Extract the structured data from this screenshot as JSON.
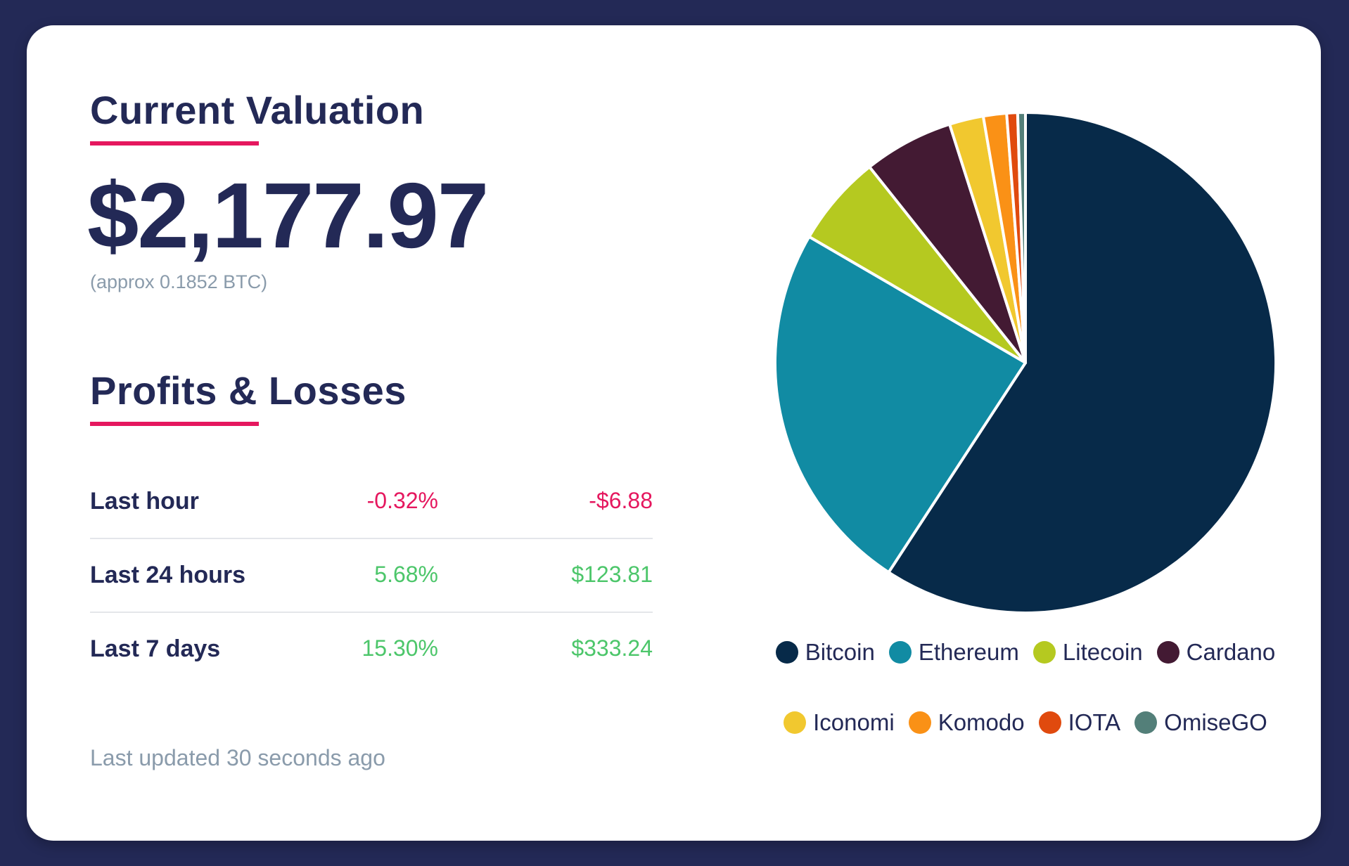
{
  "valuation": {
    "title": "Current Valuation",
    "amount": "$2,177.97",
    "approx": "(approx 0.1852 BTC)"
  },
  "profits": {
    "title": "Profits & Losses",
    "rows": [
      {
        "label": "Last hour",
        "percent": "-0.32%",
        "amount": "-$6.88",
        "trend": "neg"
      },
      {
        "label": "Last 24 hours",
        "percent": "5.68%",
        "amount": "$123.81",
        "trend": "pos"
      },
      {
        "label": "Last 7 days",
        "percent": "15.30%",
        "amount": "$333.24",
        "trend": "pos"
      }
    ]
  },
  "updated": "Last updated 30 seconds ago",
  "colors": {
    "accent": "#e5175e",
    "navy": "#232956",
    "negative": "#e5175e",
    "positive": "#4cc66a"
  },
  "chart_data": {
    "type": "pie",
    "title": "",
    "legend_position": "bottom",
    "categories": [
      "Bitcoin",
      "Ethereum",
      "Litecoin",
      "Cardano",
      "Iconomi",
      "Komodo",
      "IOTA",
      "OmiseGO"
    ],
    "values": [
      59.2,
      24.2,
      5.9,
      5.8,
      2.2,
      1.5,
      0.7,
      0.5
    ],
    "colors": [
      "#072a49",
      "#118ba3",
      "#b5c920",
      "#431a33",
      "#f1c82f",
      "#fa9116",
      "#e04a0e",
      "#537f79"
    ]
  }
}
